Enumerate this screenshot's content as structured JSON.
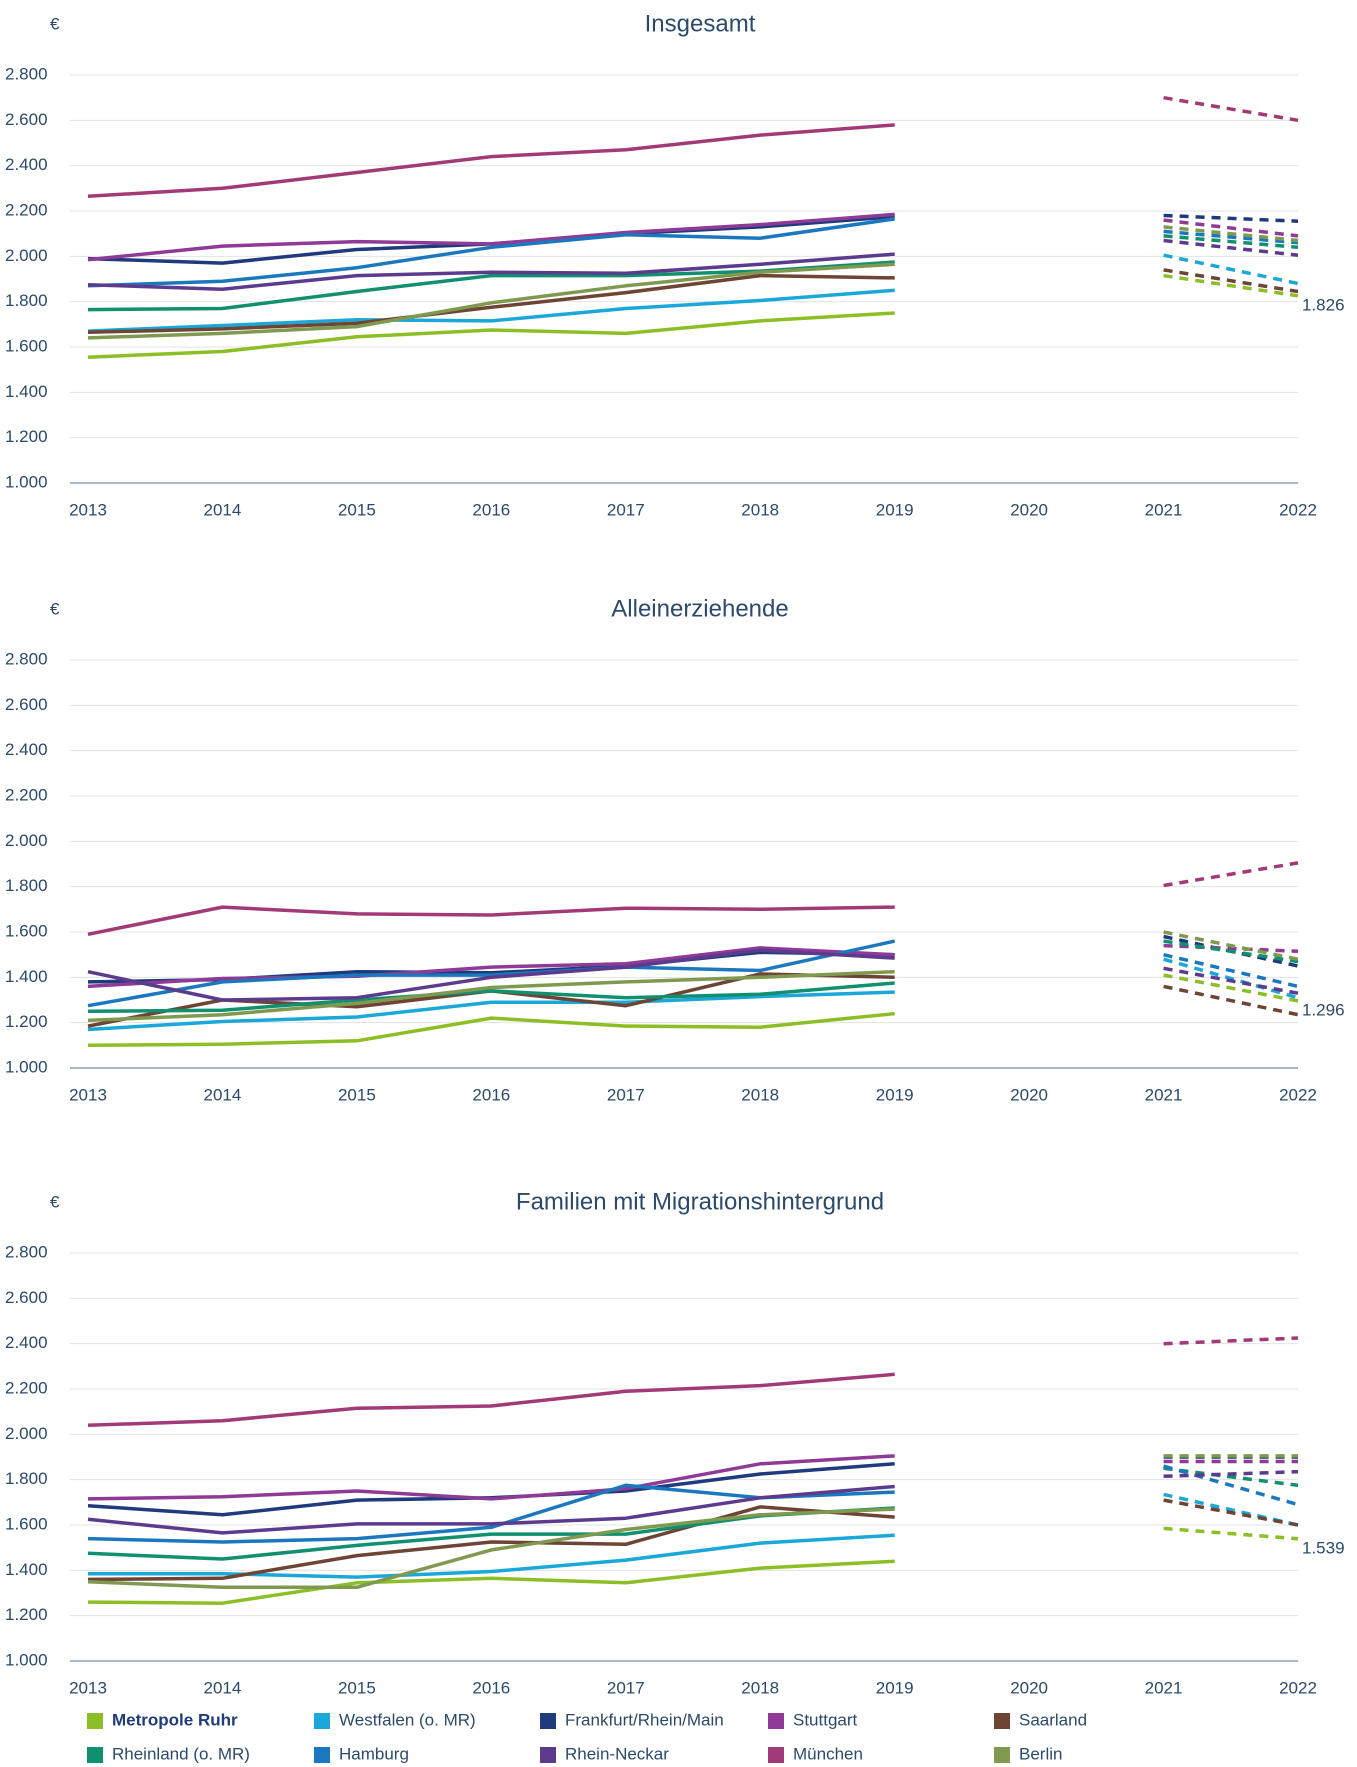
{
  "chart_data": [
    {
      "type": "line",
      "title": "Insgesamt",
      "y_label": "€",
      "forecast_line_style": "dashed",
      "grid": true,
      "x": [
        2013,
        2014,
        2015,
        2016,
        2017,
        2018,
        2019,
        2020,
        2021,
        2022
      ],
      "xlim": [
        2013,
        2022
      ],
      "xticks": [
        2013,
        2014,
        2015,
        2016,
        2017,
        2018,
        2019,
        2020,
        2021,
        2022
      ],
      "ylim": [
        1000,
        2800
      ],
      "yticks": [
        {
          "value": 1000,
          "label": "1.000"
        },
        {
          "value": 1200,
          "label": "1.200"
        },
        {
          "value": 1400,
          "label": "1.400"
        },
        {
          "value": 1600,
          "label": "1.600"
        },
        {
          "value": 1800,
          "label": "1.800"
        },
        {
          "value": 2000,
          "label": "2.000"
        },
        {
          "value": 2200,
          "label": "2.200"
        },
        {
          "value": 2400,
          "label": "2.400"
        },
        {
          "value": 2600,
          "label": "2.600"
        },
        {
          "value": 2800,
          "label": "2.800"
        }
      ],
      "series": [
        {
          "name": "Metropole Ruhr",
          "color": "#8cbf26",
          "values": [
            1555,
            1580,
            1645,
            1675,
            1660,
            1715,
            1750,
            null,
            1915,
            1826
          ],
          "value_labels": [
            null,
            null,
            null,
            null,
            null,
            null,
            null,
            null,
            null,
            "1.826"
          ]
        },
        {
          "name": "Westfalen (o. MR)",
          "color": "#1ba8d8",
          "values": [
            1670,
            1695,
            1720,
            1715,
            1770,
            1805,
            1850,
            null,
            2005,
            1880
          ]
        },
        {
          "name": "Frankfurt/Rhein/Main",
          "color": "#1f3a7d",
          "values": [
            1990,
            1970,
            2030,
            2055,
            2100,
            2130,
            2175,
            null,
            2180,
            2155
          ]
        },
        {
          "name": "Stuttgart",
          "color": "#8e3a96",
          "values": [
            1985,
            2045,
            2065,
            2055,
            2105,
            2140,
            2185,
            null,
            2160,
            2090
          ]
        },
        {
          "name": "Saarland",
          "color": "#6e4434",
          "values": [
            1665,
            1680,
            1705,
            1775,
            1840,
            1915,
            1905,
            null,
            1940,
            1845
          ]
        },
        {
          "name": "Rheinland (o. MR)",
          "color": "#10906e",
          "values": [
            1765,
            1770,
            1845,
            1915,
            1915,
            1935,
            1975,
            null,
            2090,
            2040
          ]
        },
        {
          "name": "Hamburg",
          "color": "#1b78be",
          "values": [
            1870,
            1890,
            1950,
            2040,
            2095,
            2080,
            2165,
            null,
            2110,
            2060
          ]
        },
        {
          "name": "Rhein-Neckar",
          "color": "#5c3b8f",
          "values": [
            1875,
            1855,
            1915,
            1930,
            1925,
            1965,
            2010,
            null,
            2070,
            2005
          ]
        },
        {
          "name": "München",
          "color": "#a23a78",
          "values": [
            2265,
            2300,
            2370,
            2440,
            2470,
            2535,
            2580,
            null,
            2700,
            2600
          ]
        },
        {
          "name": "Berlin",
          "color": "#7f9a50",
          "values": [
            1640,
            1660,
            1690,
            1795,
            1870,
            1930,
            1965,
            null,
            2130,
            2070
          ]
        }
      ]
    },
    {
      "type": "line",
      "title": "Alleinerziehende",
      "y_label": "€",
      "forecast_line_style": "dashed",
      "grid": true,
      "x": [
        2013,
        2014,
        2015,
        2016,
        2017,
        2018,
        2019,
        2020,
        2021,
        2022
      ],
      "xlim": [
        2013,
        2022
      ],
      "xticks": [
        2013,
        2014,
        2015,
        2016,
        2017,
        2018,
        2019,
        2020,
        2021,
        2022
      ],
      "ylim": [
        1000,
        2800
      ],
      "yticks": [
        {
          "value": 1000,
          "label": "1.000"
        },
        {
          "value": 1200,
          "label": "1.200"
        },
        {
          "value": 1400,
          "label": "1.400"
        },
        {
          "value": 1600,
          "label": "1.600"
        },
        {
          "value": 1800,
          "label": "1.800"
        },
        {
          "value": 2000,
          "label": "2.000"
        },
        {
          "value": 2200,
          "label": "2.200"
        },
        {
          "value": 2400,
          "label": "2.400"
        },
        {
          "value": 2600,
          "label": "2.600"
        },
        {
          "value": 2800,
          "label": "2.800"
        }
      ],
      "series": [
        {
          "color": "#8cbf26",
          "values": [
            1100,
            1105,
            1120,
            1220,
            1185,
            1180,
            1240,
            null,
            1410,
            1296
          ],
          "value_labels": [
            null,
            null,
            null,
            null,
            null,
            null,
            null,
            null,
            null,
            "1.296"
          ]
        },
        {
          "color": "#1ba8d8",
          "values": [
            1170,
            1205,
            1225,
            1290,
            1290,
            1315,
            1335,
            null,
            1480,
            1310
          ]
        },
        {
          "color": "#1f3a7d",
          "values": [
            1380,
            1390,
            1425,
            1420,
            1450,
            1510,
            1500,
            null,
            1580,
            1450
          ]
        },
        {
          "color": "#8e3a96",
          "values": [
            1360,
            1395,
            1405,
            1445,
            1460,
            1530,
            1500,
            null,
            1540,
            1515
          ]
        },
        {
          "color": "#6e4434",
          "values": [
            1185,
            1300,
            1270,
            1340,
            1275,
            1415,
            1400,
            null,
            1360,
            1235
          ]
        },
        {
          "color": "#10906e",
          "values": [
            1250,
            1255,
            1300,
            1340,
            1310,
            1325,
            1375,
            null,
            1560,
            1470
          ]
        },
        {
          "color": "#1b78be",
          "values": [
            1275,
            1380,
            1410,
            1410,
            1445,
            1430,
            1560,
            null,
            1500,
            1360
          ]
        },
        {
          "color": "#5c3b8f",
          "values": [
            1425,
            1300,
            1310,
            1400,
            1445,
            1520,
            1485,
            null,
            1440,
            1330
          ]
        },
        {
          "color": "#a23a78",
          "values": [
            1590,
            1710,
            1680,
            1675,
            1705,
            1700,
            1710,
            null,
            1805,
            1905
          ]
        },
        {
          "color": "#7f9a50",
          "values": [
            1210,
            1235,
            1285,
            1355,
            1380,
            1400,
            1425,
            null,
            1600,
            1480
          ]
        }
      ]
    },
    {
      "type": "line",
      "title": "Familien mit Migrationshintergrund",
      "y_label": "€",
      "forecast_line_style": "dashed",
      "grid": true,
      "x": [
        2013,
        2014,
        2015,
        2016,
        2017,
        2018,
        2019,
        2020,
        2021,
        2022
      ],
      "xlim": [
        2013,
        2022
      ],
      "xticks": [
        2013,
        2014,
        2015,
        2016,
        2017,
        2018,
        2019,
        2020,
        2021,
        2022
      ],
      "ylim": [
        1000,
        2800
      ],
      "yticks": [
        {
          "value": 1000,
          "label": "1.000"
        },
        {
          "value": 1200,
          "label": "1.200"
        },
        {
          "value": 1400,
          "label": "1.400"
        },
        {
          "value": 1600,
          "label": "1.600"
        },
        {
          "value": 1800,
          "label": "1.800"
        },
        {
          "value": 2000,
          "label": "2.000"
        },
        {
          "value": 2200,
          "label": "2.200"
        },
        {
          "value": 2400,
          "label": "2.400"
        },
        {
          "value": 2600,
          "label": "2.600"
        },
        {
          "value": 2800,
          "label": "2.800"
        }
      ],
      "series": [
        {
          "color": "#8cbf26",
          "values": [
            1260,
            1255,
            1345,
            1365,
            1345,
            1410,
            1440,
            null,
            1585,
            1539
          ],
          "value_labels": [
            null,
            null,
            null,
            null,
            null,
            null,
            null,
            null,
            null,
            "1.539"
          ]
        },
        {
          "color": "#1ba8d8",
          "values": [
            1385,
            1385,
            1370,
            1395,
            1445,
            1520,
            1555,
            null,
            1735,
            1600
          ]
        },
        {
          "color": "#1f3a7d",
          "values": [
            1685,
            1645,
            1710,
            1720,
            1750,
            1825,
            1870,
            null,
            1900,
            1900
          ]
        },
        {
          "color": "#8e3a96",
          "values": [
            1715,
            1725,
            1750,
            1715,
            1760,
            1870,
            1905,
            null,
            1880,
            1880
          ]
        },
        {
          "color": "#6e4434",
          "values": [
            1360,
            1365,
            1465,
            1525,
            1515,
            1680,
            1635,
            null,
            1710,
            1600
          ]
        },
        {
          "color": "#10906e",
          "values": [
            1475,
            1450,
            1510,
            1560,
            1560,
            1640,
            1675,
            null,
            1850,
            1775
          ]
        },
        {
          "color": "#1b78be",
          "values": [
            1540,
            1525,
            1540,
            1590,
            1775,
            1720,
            1745,
            null,
            1860,
            1690
          ]
        },
        {
          "color": "#5c3b8f",
          "values": [
            1625,
            1565,
            1605,
            1605,
            1630,
            1720,
            1770,
            null,
            1815,
            1835
          ]
        },
        {
          "color": "#a23a78",
          "values": [
            2040,
            2060,
            2115,
            2125,
            2190,
            2215,
            2265,
            null,
            2400,
            2425
          ]
        },
        {
          "color": "#7f9a50",
          "values": [
            1350,
            1325,
            1325,
            1490,
            1580,
            1645,
            1670,
            null,
            1905,
            1905
          ]
        }
      ]
    }
  ]
}
